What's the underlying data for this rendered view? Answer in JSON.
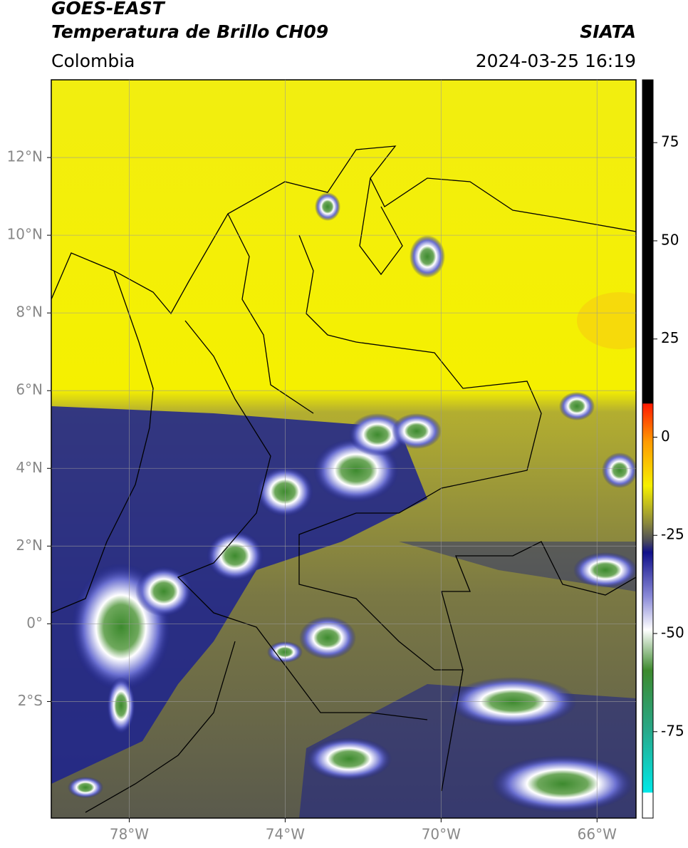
{
  "header": {
    "title": "GOES-EAST",
    "subtitle": "Temperatura de Brillo CH09",
    "source": "SIATA",
    "region": "Colombia",
    "datetime": "2024-03-25 16:19"
  },
  "map": {
    "xlim": [
      -80,
      -65
    ],
    "ylim": [
      -5,
      14
    ],
    "xticks": [
      {
        "value": -78,
        "label": "78°W"
      },
      {
        "value": -74,
        "label": "74°W"
      },
      {
        "value": -70,
        "label": "70°W"
      },
      {
        "value": -66,
        "label": "66°W"
      }
    ],
    "yticks": [
      {
        "value": 12,
        "label": "12°N"
      },
      {
        "value": 10,
        "label": "10°N"
      },
      {
        "value": 8,
        "label": "8°N"
      },
      {
        "value": 6,
        "label": "6°N"
      },
      {
        "value": 4,
        "label": "4°N"
      },
      {
        "value": 2,
        "label": "2°N"
      },
      {
        "value": 0,
        "label": "0°"
      },
      {
        "value": -2,
        "label": "2°S"
      }
    ],
    "grid": true
  },
  "colorbar": {
    "lim": [
      -97,
      91
    ],
    "ticks": [
      75,
      50,
      25,
      0,
      -25,
      -50,
      -75
    ]
  }
}
